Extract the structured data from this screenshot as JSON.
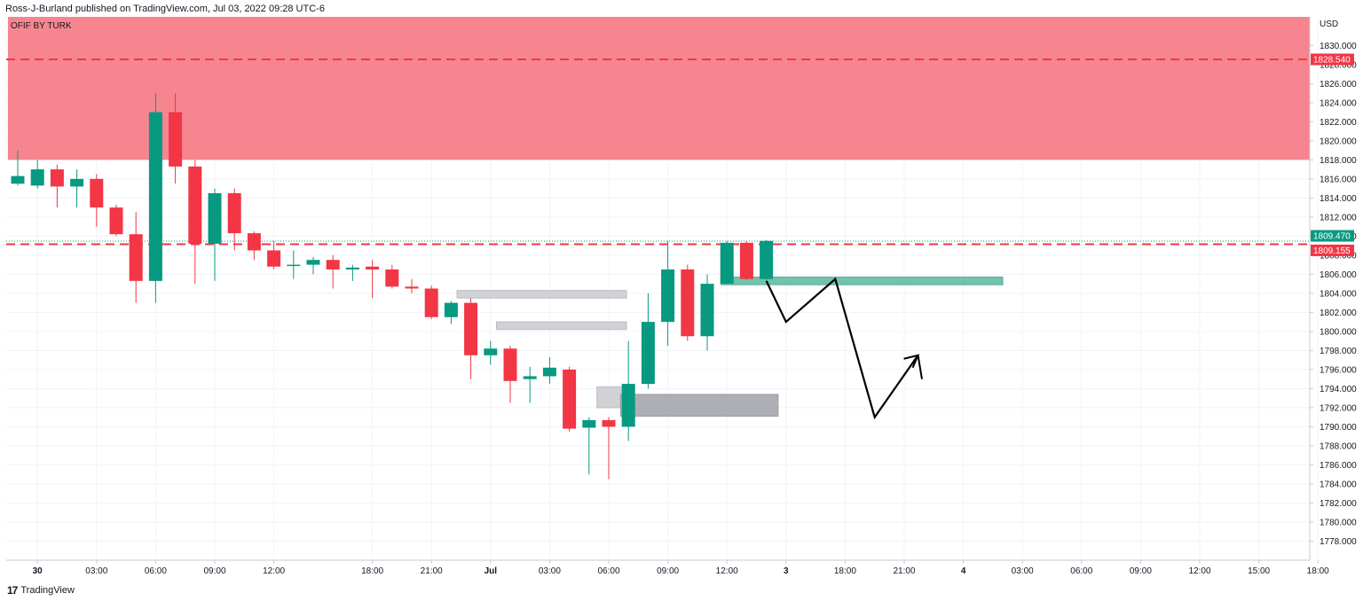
{
  "header": {
    "publisher_line": "Ross-J-Burland published on TradingView.com, Jul 03, 2022 09:28 UTC-6"
  },
  "indicator": {
    "label": "OFIF BY TURK"
  },
  "footer": {
    "brand": "TradingView",
    "logo_mark": "17"
  },
  "colors": {
    "bull": "#089981",
    "bear": "#f23645",
    "zone_red": "#f7858f",
    "zone_green": "#6bbfa9",
    "fvg_light": "#cfd0d3",
    "fvg_dark": "#a9abb0",
    "price_up_label": "#089981",
    "price_down_label": "#f23645"
  },
  "chart_data": {
    "type": "candlestick",
    "currency": "USD",
    "y_ticks": [
      1778,
      1780,
      1782,
      1784,
      1786,
      1788,
      1790,
      1792,
      1794,
      1796,
      1798,
      1800,
      1802,
      1804,
      1806,
      1808,
      1810,
      1812,
      1814,
      1816,
      1818,
      1820,
      1822,
      1824,
      1826,
      1828,
      1830
    ],
    "y_tick_labels": [
      "1778.000",
      "1780.000",
      "1782.000",
      "1784.000",
      "1786.000",
      "1788.000",
      "1790.000",
      "1792.000",
      "1794.000",
      "1796.000",
      "1798.000",
      "1800.000",
      "1802.000",
      "1804.000",
      "1806.000",
      "1808.000",
      "1810.000",
      "1812.000",
      "1814.000",
      "1816.000",
      "1818.000",
      "1820.000",
      "1822.000",
      "1824.000",
      "1826.000",
      "1828.000",
      "1830.000"
    ],
    "ylim": [
      1776.0,
      1833.0
    ],
    "x_axis": [
      {
        "idx": 1,
        "label": "30",
        "bold": true
      },
      {
        "idx": 4,
        "label": "03:00"
      },
      {
        "idx": 7,
        "label": "06:00"
      },
      {
        "idx": 10,
        "label": "09:00"
      },
      {
        "idx": 13,
        "label": "12:00"
      },
      {
        "idx": 18,
        "label": "18:00"
      },
      {
        "idx": 21,
        "label": "21:00"
      },
      {
        "idx": 24,
        "label": "Jul",
        "bold": true
      },
      {
        "idx": 27,
        "label": "03:00"
      },
      {
        "idx": 30,
        "label": "06:00"
      },
      {
        "idx": 33,
        "label": "09:00"
      },
      {
        "idx": 36,
        "label": "12:00"
      },
      {
        "idx": 39,
        "label": "3",
        "bold": true
      },
      {
        "idx": 42,
        "label": "18:00"
      },
      {
        "idx": 45,
        "label": "21:00"
      },
      {
        "idx": 48,
        "label": "4",
        "bold": true
      },
      {
        "idx": 51,
        "label": "03:00"
      },
      {
        "idx": 54,
        "label": "06:00"
      },
      {
        "idx": 57,
        "label": "09:00"
      },
      {
        "idx": 60,
        "label": "12:00"
      },
      {
        "idx": 63,
        "label": "15:00"
      },
      {
        "idx": 66,
        "label": "18:00"
      }
    ],
    "candles": [
      {
        "o": 1815.5,
        "h": 1819.0,
        "l": 1815.3,
        "c": 1816.3
      },
      {
        "o": 1815.3,
        "h": 1818.0,
        "l": 1815.0,
        "c": 1817.0
      },
      {
        "o": 1817.0,
        "h": 1817.5,
        "l": 1813.0,
        "c": 1815.2
      },
      {
        "o": 1815.2,
        "h": 1817.0,
        "l": 1813.0,
        "c": 1816.0
      },
      {
        "o": 1816.0,
        "h": 1816.5,
        "l": 1811.0,
        "c": 1813.0
      },
      {
        "o": 1813.0,
        "h": 1813.3,
        "l": 1810.0,
        "c": 1810.2
      },
      {
        "o": 1810.2,
        "h": 1812.5,
        "l": 1803.0,
        "c": 1805.3
      },
      {
        "o": 1805.3,
        "h": 1825.0,
        "l": 1803.0,
        "c": 1823.0
      },
      {
        "o": 1823.0,
        "h": 1825.0,
        "l": 1815.5,
        "c": 1817.3
      },
      {
        "o": 1817.3,
        "h": 1818.0,
        "l": 1805.0,
        "c": 1809.2
      },
      {
        "o": 1809.2,
        "h": 1815.0,
        "l": 1805.3,
        "c": 1814.5
      },
      {
        "o": 1814.5,
        "h": 1815.0,
        "l": 1808.5,
        "c": 1810.3
      },
      {
        "o": 1810.3,
        "h": 1810.5,
        "l": 1807.5,
        "c": 1808.5
      },
      {
        "o": 1808.5,
        "h": 1809.5,
        "l": 1806.5,
        "c": 1806.8
      },
      {
        "o": 1806.9,
        "h": 1808.5,
        "l": 1805.5,
        "c": 1807.0
      },
      {
        "o": 1807.0,
        "h": 1807.8,
        "l": 1806.0,
        "c": 1807.5
      },
      {
        "o": 1807.5,
        "h": 1808.0,
        "l": 1804.5,
        "c": 1806.5
      },
      {
        "o": 1806.5,
        "h": 1807.0,
        "l": 1805.3,
        "c": 1806.7
      },
      {
        "o": 1806.8,
        "h": 1807.5,
        "l": 1803.5,
        "c": 1806.5
      },
      {
        "o": 1806.5,
        "h": 1807.0,
        "l": 1804.5,
        "c": 1804.7
      },
      {
        "o": 1804.7,
        "h": 1805.5,
        "l": 1804.0,
        "c": 1804.5
      },
      {
        "o": 1804.5,
        "h": 1804.8,
        "l": 1801.3,
        "c": 1801.5
      },
      {
        "o": 1801.5,
        "h": 1803.2,
        "l": 1800.8,
        "c": 1803.0
      },
      {
        "o": 1803.0,
        "h": 1803.5,
        "l": 1795.0,
        "c": 1797.5
      },
      {
        "o": 1797.5,
        "h": 1799.0,
        "l": 1796.5,
        "c": 1798.2
      },
      {
        "o": 1798.2,
        "h": 1798.5,
        "l": 1792.5,
        "c": 1794.8
      },
      {
        "o": 1795.0,
        "h": 1796.3,
        "l": 1792.5,
        "c": 1795.3
      },
      {
        "o": 1795.3,
        "h": 1797.3,
        "l": 1794.5,
        "c": 1796.2
      },
      {
        "o": 1796.0,
        "h": 1796.3,
        "l": 1789.5,
        "c": 1789.8
      },
      {
        "o": 1789.9,
        "h": 1791.0,
        "l": 1785.0,
        "c": 1790.7
      },
      {
        "o": 1790.7,
        "h": 1791.0,
        "l": 1784.5,
        "c": 1790.0
      },
      {
        "o": 1790.0,
        "h": 1799.0,
        "l": 1788.5,
        "c": 1794.5
      },
      {
        "o": 1794.5,
        "h": 1804.0,
        "l": 1794.0,
        "c": 1801.0
      },
      {
        "o": 1801.0,
        "h": 1809.5,
        "l": 1798.5,
        "c": 1806.5
      },
      {
        "o": 1806.5,
        "h": 1807.0,
        "l": 1799.0,
        "c": 1799.5
      },
      {
        "o": 1799.5,
        "h": 1806.0,
        "l": 1798.0,
        "c": 1805.0
      },
      {
        "o": 1805.0,
        "h": 1809.5,
        "l": 1805.0,
        "c": 1809.3
      },
      {
        "o": 1809.3,
        "h": 1809.5,
        "l": 1805.4,
        "c": 1805.5
      },
      {
        "o": 1805.5,
        "h": 1809.6,
        "l": 1805.4,
        "c": 1809.5
      }
    ],
    "zones": [
      {
        "kind": "supply",
        "x0": -0.5,
        "x1": 67.5,
        "y0": 1818.0,
        "y1": 1833.0
      },
      {
        "kind": "demand",
        "x0": 35.7,
        "x1": 50.0,
        "y0": 1804.9,
        "y1": 1805.7
      },
      {
        "kind": "fvg",
        "x0": 22.3,
        "x1": 30.9,
        "y0": 1803.5,
        "y1": 1804.3
      },
      {
        "kind": "fvg",
        "x0": 24.3,
        "x1": 30.9,
        "y0": 1800.2,
        "y1": 1801.0
      },
      {
        "kind": "fvg",
        "x0": 29.4,
        "x1": 31.3,
        "y0": 1792.0,
        "y1": 1794.2
      },
      {
        "kind": "fvg_dark",
        "x0": 30.6,
        "x1": 38.6,
        "y0": 1791.1,
        "y1": 1793.4
      }
    ],
    "levels": [
      {
        "price": 1828.54,
        "label": "1828.540",
        "color": "#f23645",
        "style": "dashed"
      },
      {
        "price": 1809.155,
        "label": "1809.155",
        "color": "#f23645",
        "style": "dashed"
      },
      {
        "price": 1809.47,
        "label": "1809.470",
        "color": "#089981",
        "style": "dotted"
      }
    ],
    "projection": [
      {
        "idx": 38.0,
        "price": 1805.3
      },
      {
        "idx": 39.0,
        "price": 1801.0
      },
      {
        "idx": 41.5,
        "price": 1805.5
      },
      {
        "idx": 43.5,
        "price": 1791.0
      },
      {
        "idx": 45.7,
        "price": 1797.5
      }
    ],
    "projection_arrow_tip": {
      "idx": 45.7,
      "price": 1797.5
    },
    "projection_end": {
      "idx": 45.9,
      "price": 1795.0
    }
  }
}
